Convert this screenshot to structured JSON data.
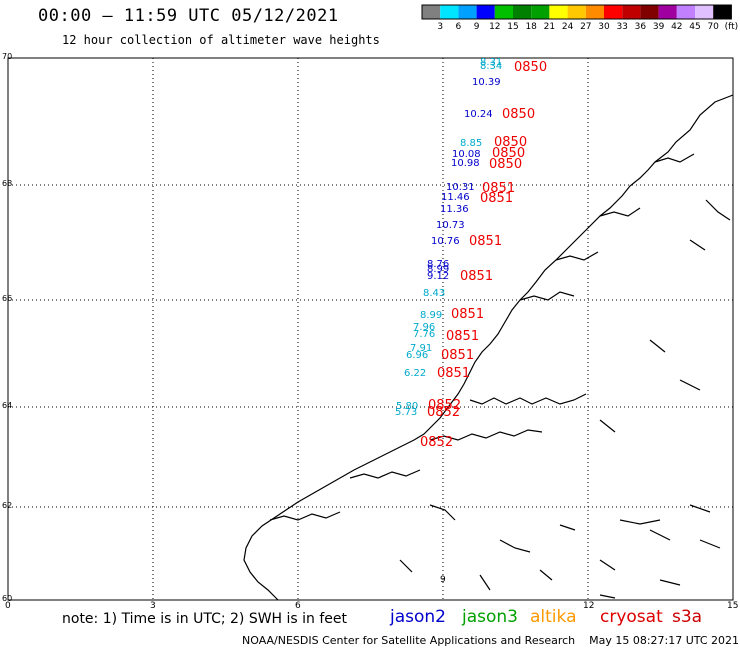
{
  "header": {
    "title": "00:00 – 11:59 UTC 05/12/2021",
    "subtitle": "12 hour collection of altimeter wave heights"
  },
  "legend": {
    "colors": [
      "#808080",
      "#00e5ff",
      "#00a0ff",
      "#0000ff",
      "#00c000",
      "#008000",
      "#00a000",
      "#ffff00",
      "#ffc800",
      "#ff8c00",
      "#ff0000",
      "#c00000",
      "#800000",
      "#a000a0",
      "#c080ff",
      "#e0c0ff",
      "#000000"
    ],
    "labels": [
      "3",
      "6",
      "9",
      "12",
      "15",
      "18",
      "21",
      "24",
      "27",
      "30",
      "33",
      "36",
      "39",
      "42",
      "45",
      "70",
      "(ft)"
    ]
  },
  "axes": {
    "x_ticks": [
      "0",
      "3",
      "6",
      "9",
      "12",
      "15"
    ],
    "y_ticks": [
      "70",
      "68",
      "66",
      "64",
      "62",
      "60"
    ]
  },
  "footer": {
    "note": "note:  1) Time is in UTC;  2) SWH is in feet",
    "credit": "NOAA/NESDIS Center for Satellite Applications and Research    May 15 08:27:17 UTC 2021"
  },
  "satellites": [
    {
      "name": "jason2",
      "color": "#0000cc"
    },
    {
      "name": "jason3",
      "color": "#00a000"
    },
    {
      "name": "altika",
      "color": "#ff9900"
    },
    {
      "name": "cryosat",
      "color": "#dd0000"
    },
    {
      "name": "s3a",
      "color": "#cc0000"
    }
  ],
  "wave_readings": [
    {
      "value": "8.31",
      "color": "#00aacc"
    },
    {
      "value": "8.34",
      "color": "#00aacc"
    },
    {
      "value": "10.39",
      "color": "#0000cc"
    },
    {
      "value": "10.24",
      "color": "#0000cc"
    },
    {
      "value": "8.85",
      "color": "#00aacc"
    },
    {
      "value": "10.08",
      "color": "#0000cc"
    },
    {
      "value": "10.98",
      "color": "#0000cc"
    },
    {
      "value": "10.31",
      "color": "#0000cc"
    },
    {
      "value": "11.46",
      "color": "#0000cc"
    },
    {
      "value": "11.36",
      "color": "#0000cc"
    },
    {
      "value": "10.73",
      "color": "#0000cc"
    },
    {
      "value": "10.76",
      "color": "#0000cc"
    },
    {
      "value": "8.76",
      "color": "#0000cc"
    },
    {
      "value": "8.99",
      "color": "#0000cc"
    },
    {
      "value": "9.12",
      "color": "#0000cc"
    },
    {
      "value": "8.43",
      "color": "#00aacc"
    },
    {
      "value": "8.99",
      "color": "#00aacc"
    },
    {
      "value": "7.96",
      "color": "#00aacc"
    },
    {
      "value": "7.76",
      "color": "#00aacc"
    },
    {
      "value": "7.91",
      "color": "#00aacc"
    },
    {
      "value": "6.96",
      "color": "#00aacc"
    },
    {
      "value": "6.22",
      "color": "#00aacc"
    },
    {
      "value": "5.80",
      "color": "#00aacc"
    },
    {
      "value": "5.73",
      "color": "#00aacc"
    }
  ],
  "time_labels": [
    {
      "value": "0850",
      "color": "#ee0000"
    },
    {
      "value": "0850",
      "color": "#ee0000"
    },
    {
      "value": "0850",
      "color": "#ee0000"
    },
    {
      "value": "0850",
      "color": "#ee0000"
    },
    {
      "value": "0850",
      "color": "#ee0000"
    },
    {
      "value": "0851",
      "color": "#ee0000"
    },
    {
      "value": "0851",
      "color": "#ee0000"
    },
    {
      "value": "0851",
      "color": "#ee0000"
    },
    {
      "value": "0851",
      "color": "#ee0000"
    },
    {
      "value": "0851",
      "color": "#ee0000"
    },
    {
      "value": "0851",
      "color": "#ee0000"
    },
    {
      "value": "0851",
      "color": "#ee0000"
    },
    {
      "value": "0851",
      "color": "#ee0000"
    },
    {
      "value": "0852",
      "color": "#ee0000"
    },
    {
      "value": "0852",
      "color": "#ee0000"
    },
    {
      "value": "0852",
      "color": "#ee0000"
    }
  ]
}
